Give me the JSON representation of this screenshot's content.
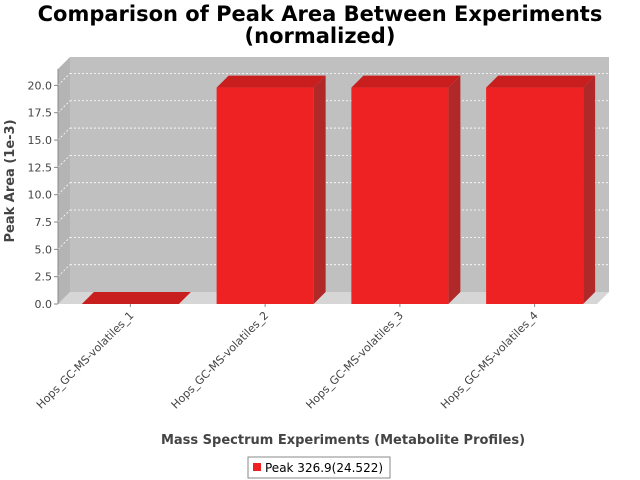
{
  "chart_data": {
    "type": "bar",
    "title": "Comparison of Peak Area Between Experiments",
    "subtitle": "(normalized)",
    "xlabel": "Mass Spectrum Experiments (Metabolite Profiles)",
    "ylabel": "Peak Area (1e-3)",
    "ylim": [
      0,
      21.5
    ],
    "yticks": [
      "0.0",
      "2.5",
      "5.0",
      "7.5",
      "10.0",
      "12.5",
      "15.0",
      "17.5",
      "20.0"
    ],
    "categories": [
      "Hops_GC-MS-volatiles_1",
      "Hops_GC-MS-volatiles_2",
      "Hops_GC-MS-volatiles_3",
      "Hops_GC-MS-volatiles_4"
    ],
    "series": [
      {
        "name": "Peak 326.9(24.522)",
        "values": [
          0.0,
          19.8,
          19.8,
          19.8
        ],
        "color": "#ee2222"
      }
    ],
    "grid": true,
    "legend_position": "bottom-center",
    "plot_background": "#c0c0c0"
  }
}
